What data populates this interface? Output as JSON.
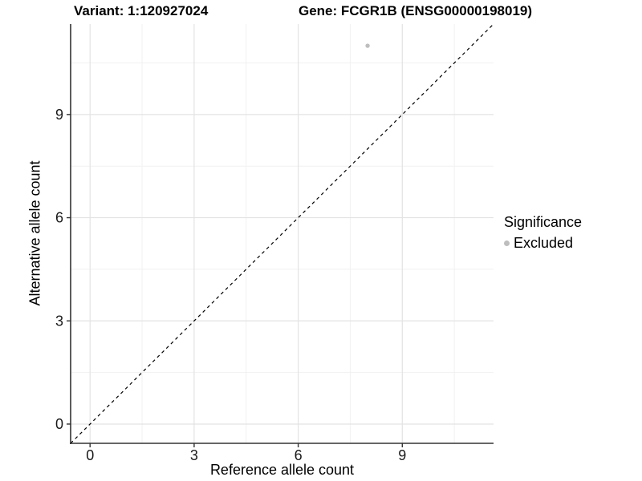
{
  "header": {
    "left_title": "Variant: 1:120927024",
    "right_title": "Gene: FCGR1B (ENSG00000198019)"
  },
  "legend": {
    "title": "Significance",
    "items": [
      {
        "label": "Excluded",
        "color": "#bebebe"
      }
    ]
  },
  "colors": {
    "background": "#ffffff",
    "grid_major": "#e3e3e3",
    "grid_minor": "#f1f1f1",
    "axis_line": "#333333",
    "tick_mark": "#333333",
    "tick_label": "#1a1a1a",
    "identity_line": "#000000",
    "point": "#bebebe"
  },
  "chart_data": {
    "type": "scatter",
    "title": "Variant: 1:120927024 — Gene: FCGR1B (ENSG00000198019)",
    "xlabel": "Reference allele count",
    "ylabel": "Alternative allele count",
    "xlim": [
      -0.56,
      11.63
    ],
    "ylim": [
      -0.56,
      11.63
    ],
    "x_ticks": [
      0,
      3,
      6,
      9
    ],
    "y_ticks": [
      0,
      3,
      6,
      9
    ],
    "x_minor_ticks": [
      1.5,
      4.5,
      7.5,
      10.5
    ],
    "y_minor_ticks": [
      1.5,
      4.5,
      7.5,
      10.5
    ],
    "grid": true,
    "legend_position": "right",
    "series": [
      {
        "name": "Excluded",
        "color": "#bebebe",
        "points": [
          {
            "x": 8,
            "y": 11
          }
        ]
      }
    ],
    "reference_line": {
      "equation": "y = x",
      "style": "dashed",
      "color": "#000000"
    }
  }
}
